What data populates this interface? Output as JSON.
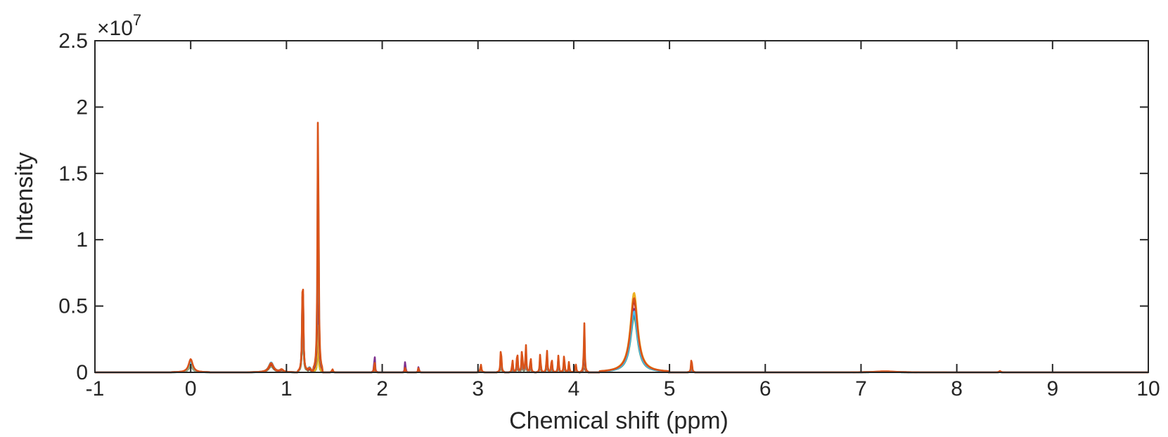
{
  "chart_data": {
    "type": "line",
    "xlabel": "Chemical shift (ppm)",
    "ylabel": "Intensity",
    "y_exponent_prefix": "×10",
    "y_exponent_power": "7",
    "xlim": [
      -1,
      10
    ],
    "ylim": [
      0,
      25000000.0
    ],
    "x_ticks": [
      -1,
      0,
      1,
      2,
      3,
      4,
      5,
      6,
      7,
      8,
      9,
      10
    ],
    "x_tick_labels": [
      "-1",
      "0",
      "1",
      "2",
      "3",
      "4",
      "5",
      "6",
      "7",
      "8",
      "9",
      "10"
    ],
    "y_ticks": [
      0,
      5000000,
      10000000,
      15000000,
      20000000,
      25000000
    ],
    "y_tick_labels": [
      "0",
      "0.5",
      "1",
      "1.5",
      "2",
      "2.5"
    ],
    "grid": false,
    "legend": "none",
    "series_colors": [
      "#D95319",
      "#4DBEEE",
      "#A2142F",
      "#EDB120",
      "#7E2F8E",
      "#0072BD",
      "#77AC30"
    ],
    "peaks": [
      {
        "x": 0.0,
        "heights": [
          1000000.0,
          800000.0,
          900000.0,
          600000.0,
          700000.0,
          500000.0,
          600000.0
        ],
        "width": 0.025
      },
      {
        "x": 0.84,
        "heights": [
          700000.0,
          750000.0,
          600000.0,
          500000.0,
          550000.0,
          450000.0,
          500000.0
        ],
        "width": 0.03
      },
      {
        "x": 0.95,
        "heights": [
          200000.0,
          180000.0,
          150000.0,
          120000.0,
          100000.0,
          120000.0,
          100000.0
        ],
        "width": 0.02
      },
      {
        "x": 1.17,
        "heights": [
          8400000.0,
          7600000.0,
          7900000.0,
          6800000.0,
          7200000.0,
          6500000.0,
          6000000.0
        ],
        "width": 0.006
      },
      {
        "x": 1.24,
        "heights": [
          350000.0,
          400000.0,
          300000.0,
          300000.0,
          250000.0,
          300000.0,
          200000.0
        ],
        "width": 0.02
      },
      {
        "x": 1.33,
        "heights": [
          21400000.0,
          19000000.0,
          13500000.0,
          4000000.0,
          8000000.0,
          5000000.0,
          3000000.0
        ],
        "width": 0.006
      },
      {
        "x": 1.48,
        "heights": [
          250000.0,
          200000.0,
          200000.0,
          150000.0,
          180000.0,
          120000.0,
          100000.0
        ],
        "width": 0.006
      },
      {
        "x": 1.92,
        "heights": [
          1000000.0,
          800000.0,
          900000.0,
          500000.0,
          1600000.0,
          600000.0,
          400000.0
        ],
        "width": 0.004
      },
      {
        "x": 2.24,
        "heights": [
          400000.0,
          300000.0,
          300000.0,
          200000.0,
          900000.0,
          300000.0,
          200000.0
        ],
        "width": 0.004
      },
      {
        "x": 2.38,
        "heights": [
          400000.0,
          300000.0,
          350000.0,
          250000.0,
          500000.0,
          300000.0,
          200000.0
        ],
        "width": 0.004
      },
      {
        "x": 3.03,
        "heights": [
          600000.0,
          500000.0,
          500000.0,
          400000.0,
          450000.0,
          350000.0,
          300000.0
        ],
        "width": 0.006
      },
      {
        "x": 3.24,
        "heights": [
          2100000.0,
          1600000.0,
          1400000.0,
          1000000.0,
          1200000.0,
          900000.0,
          800000.0
        ],
        "width": 0.005
      },
      {
        "x": 3.36,
        "heights": [
          1000000.0,
          800000.0,
          700000.0,
          600000.0,
          600000.0,
          500000.0,
          400000.0
        ],
        "width": 0.005
      },
      {
        "x": 3.41,
        "heights": [
          1800000.0,
          1500000.0,
          1300000.0,
          1000000.0,
          1100000.0,
          900000.0,
          800000.0
        ],
        "width": 0.005
      },
      {
        "x": 3.46,
        "heights": [
          2000000.0,
          1700000.0,
          1500000.0,
          1200000.0,
          1300000.0,
          1000000.0,
          900000.0
        ],
        "width": 0.005
      },
      {
        "x": 3.5,
        "heights": [
          2200000.0,
          1800000.0,
          1600000.0,
          1300000.0,
          1400000.0,
          1100000.0,
          1000000.0
        ],
        "width": 0.005
      },
      {
        "x": 3.55,
        "heights": [
          1300000.0,
          1100000.0,
          1000000.0,
          800000.0,
          900000.0,
          700000.0,
          600000.0
        ],
        "width": 0.005
      },
      {
        "x": 3.65,
        "heights": [
          1500000.0,
          1200000.0,
          1100000.0,
          900000.0,
          1000000.0,
          800000.0,
          700000.0
        ],
        "width": 0.005
      },
      {
        "x": 3.72,
        "heights": [
          1800000.0,
          1500000.0,
          1300000.0,
          1100000.0,
          1200000.0,
          900000.0,
          800000.0
        ],
        "width": 0.005
      },
      {
        "x": 3.77,
        "heights": [
          1200000.0,
          1000000.0,
          900000.0,
          700000.0,
          800000.0,
          600000.0,
          500000.0
        ],
        "width": 0.005
      },
      {
        "x": 3.84,
        "heights": [
          1300000.0,
          1100000.0,
          1000000.0,
          800000.0,
          900000.0,
          700000.0,
          600000.0
        ],
        "width": 0.005
      },
      {
        "x": 3.9,
        "heights": [
          1400000.0,
          1100000.0,
          1000000.0,
          800000.0,
          900000.0,
          700000.0,
          600000.0
        ],
        "width": 0.005
      },
      {
        "x": 3.95,
        "heights": [
          800000.0,
          700000.0,
          600000.0,
          500000.0,
          500000.0,
          400000.0,
          400000.0
        ],
        "width": 0.005
      },
      {
        "x": 4.02,
        "heights": [
          700000.0,
          600000.0,
          550000.0,
          450000.0,
          500000.0,
          400000.0,
          350000.0
        ],
        "width": 0.006
      },
      {
        "x": 4.11,
        "heights": [
          3800000.0,
          3300000.0,
          2300000.0,
          1500000.0,
          1300000.0,
          1100000.0,
          1000000.0
        ],
        "width": 0.005
      },
      {
        "x": 4.63,
        "heights": [
          5600000.0,
          4600000.0,
          5400000.0,
          6000000.0,
          4800000.0,
          4400000.0,
          4200000.0
        ],
        "width": 0.045
      },
      {
        "x": 5.23,
        "heights": [
          1200000.0,
          900000.0,
          800000.0,
          700000.0,
          600000.0,
          500000.0,
          500000.0
        ],
        "width": 0.005
      },
      {
        "x": 7.25,
        "heights": [
          80000.0,
          70000.0,
          60000.0,
          50000.0,
          50000.0,
          40000.0,
          40000.0
        ],
        "width": 0.12
      },
      {
        "x": 8.45,
        "heights": [
          100000.0,
          50000.0,
          50000.0,
          40000.0,
          50000.0,
          30000.0,
          30000.0
        ],
        "width": 0.01
      }
    ]
  }
}
